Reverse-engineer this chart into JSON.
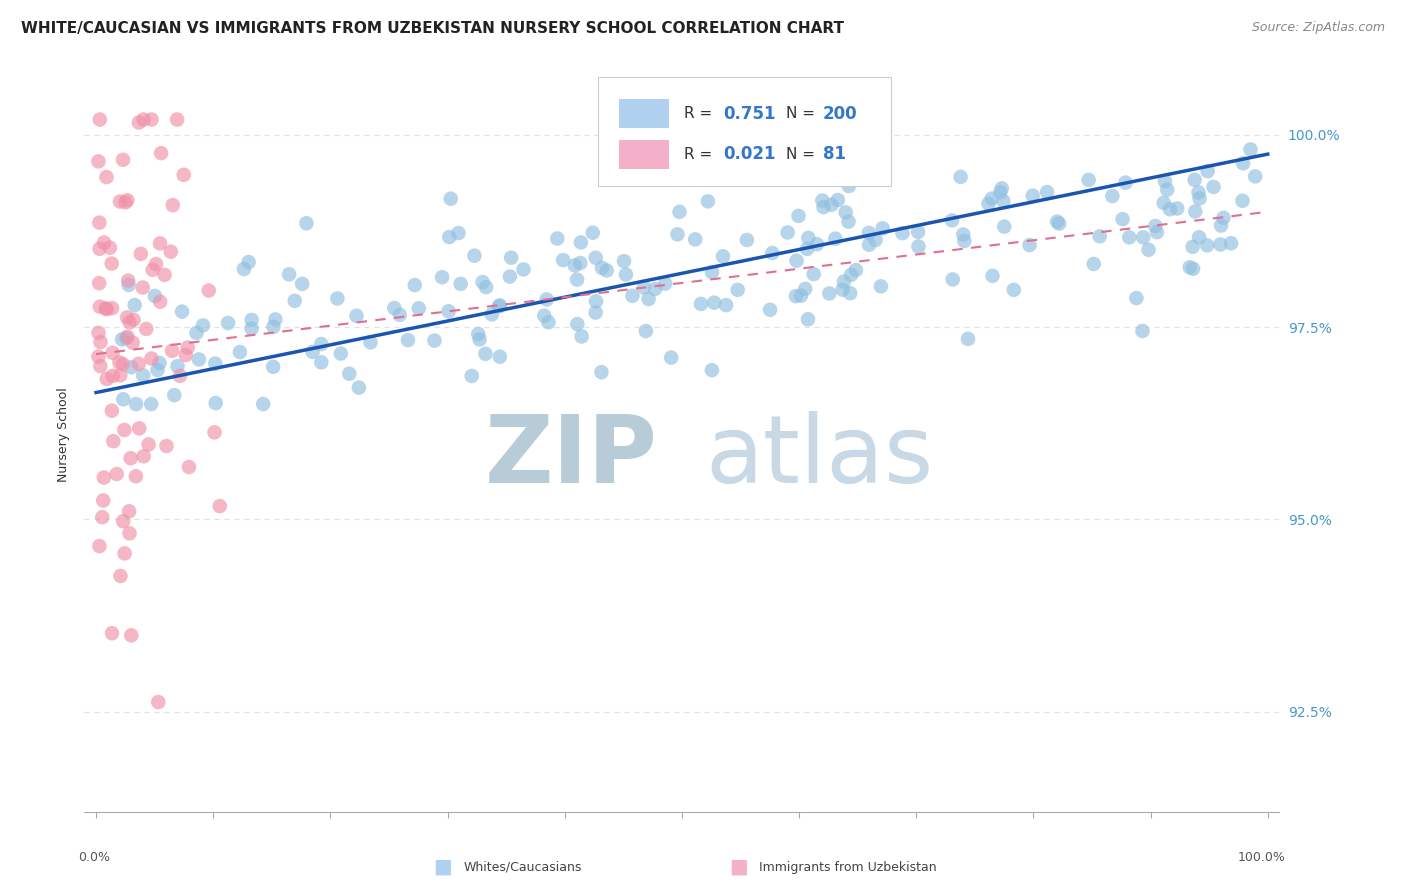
{
  "title": "WHITE/CAUCASIAN VS IMMIGRANTS FROM UZBEKISTAN NURSERY SCHOOL CORRELATION CHART",
  "source": "Source: ZipAtlas.com",
  "ylabel": "Nursery School",
  "yticks": [
    92.5,
    95.0,
    97.5,
    100.0
  ],
  "ytick_labels": [
    "92.5%",
    "95.0%",
    "97.5%",
    "100.0%"
  ],
  "xlim": [
    -1,
    101
  ],
  "ylim": [
    91.2,
    101.0
  ],
  "blue_R": 0.751,
  "blue_N": 200,
  "pink_R": 0.021,
  "pink_N": 81,
  "blue_color": "#90bfe0",
  "pink_color": "#f090a8",
  "blue_line_color": "#1a55b0",
  "pink_line_color": "#e07090",
  "legend_box_blue": "#b0d0f0",
  "legend_box_pink": "#f4b0c8",
  "watermark_zip": "ZIP",
  "watermark_atlas": "atlas",
  "watermark_color": "#d0dfe8",
  "title_fontsize": 11,
  "source_fontsize": 9,
  "background_color": "#ffffff",
  "grid_color": "#e0e0e0",
  "blue_trend_start_y": 96.65,
  "blue_trend_end_y": 99.75,
  "pink_trend_start_y": 97.15,
  "pink_trend_end_y": 99.0
}
